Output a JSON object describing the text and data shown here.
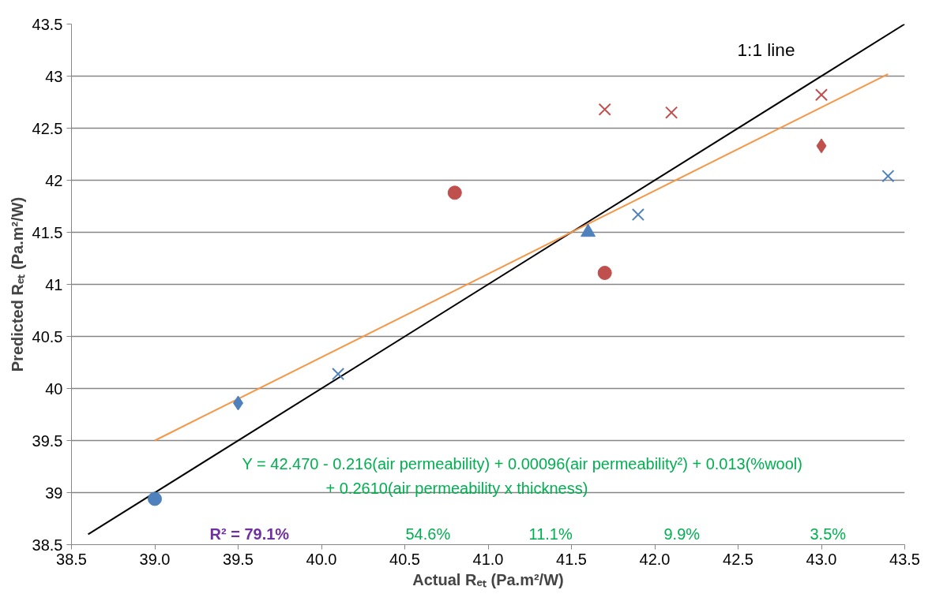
{
  "chart_data": {
    "type": "scatter",
    "xlabel": "Actual Rₑₜ (Pa.m²/W)",
    "ylabel": "Predicted Rₑₜ (Pa.m²/W)",
    "xlim": [
      38.5,
      43.5
    ],
    "ylim": [
      38.5,
      43.5
    ],
    "xticks": [
      {
        "value": 38.5,
        "label": "38.5"
      },
      {
        "value": 39,
        "label": "39.0"
      },
      {
        "value": 39.5,
        "label": "39.5"
      },
      {
        "value": 40,
        "label": "40.0"
      },
      {
        "value": 40.5,
        "label": "40.5"
      },
      {
        "value": 41,
        "label": "41.0"
      },
      {
        "value": 41.5,
        "label": "41.5"
      },
      {
        "value": 42,
        "label": "42.0"
      },
      {
        "value": 42.5,
        "label": "42.5"
      },
      {
        "value": 43,
        "label": "43.0"
      },
      {
        "value": 43.5,
        "label": "43.5"
      }
    ],
    "yticks": [
      38.5,
      39,
      39.5,
      40,
      40.5,
      41,
      41.5,
      42,
      42.5,
      43,
      43.5
    ],
    "grid": "y",
    "series": [
      {
        "type": "line",
        "color": "#000000",
        "x": [
          38.6,
          43.5
        ],
        "values": [
          38.6,
          43.5
        ]
      },
      {
        "type": "line",
        "color": "#f79646",
        "x": [
          39.0,
          43.4
        ],
        "values": [
          39.5,
          43.02
        ]
      },
      {
        "marker": "circle",
        "color": "#4f81bd",
        "x": [
          39.0
        ],
        "values": [
          38.94
        ]
      },
      {
        "marker": "diamond",
        "color": "#4f81bd",
        "x": [
          39.5
        ],
        "values": [
          39.86
        ]
      },
      {
        "marker": "cross",
        "color": "#4f81bd",
        "x": [
          40.1,
          41.9,
          43.4
        ],
        "values": [
          40.14,
          41.67,
          42.04
        ]
      },
      {
        "marker": "triangle",
        "color": "#4f81bd",
        "x": [
          41.6
        ],
        "values": [
          41.5
        ]
      },
      {
        "marker": "circle",
        "color": "#c0504d",
        "x": [
          40.8,
          41.7
        ],
        "values": [
          41.88,
          41.11
        ]
      },
      {
        "marker": "diamond",
        "color": "#c0504d",
        "x": [
          43.0
        ],
        "values": [
          42.33
        ]
      },
      {
        "marker": "cross",
        "color": "#c0504d",
        "x": [
          41.7,
          42.1,
          43.0
        ],
        "values": [
          42.68,
          42.65,
          42.82
        ]
      }
    ],
    "annotations": [
      "1:1 line",
      "Y = 42.470 - 0.216(air permeability) + 0.00096(air permeability²) + 0.013(%wool)",
      "+ 0.2610(air permeability x thickness)",
      "R² = 79.1%",
      "54.6%",
      "11.1%",
      "9.9%",
      "3.5%"
    ]
  }
}
